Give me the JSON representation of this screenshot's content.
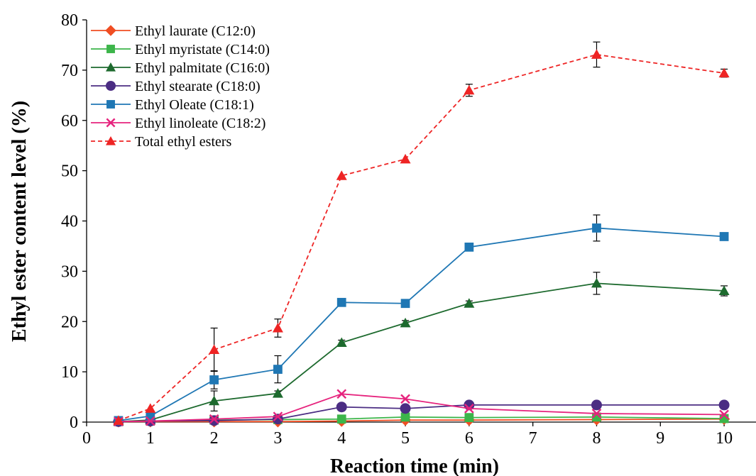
{
  "chart_data": {
    "type": "line",
    "title": "",
    "xlabel": "Reaction time  (min)",
    "ylabel": "Ethyl ester content level  (%)",
    "x": [
      0.5,
      1,
      2,
      3,
      4,
      5,
      6,
      8,
      10
    ],
    "xlim": [
      0,
      10.5
    ],
    "ylim": [
      0,
      80
    ],
    "x_ticks": [
      "0",
      "1",
      "2",
      "3",
      "4",
      "5",
      "6",
      "7",
      "8",
      "9",
      "10"
    ],
    "x_tick_values": [
      0,
      1,
      2,
      3,
      4,
      5,
      6,
      7,
      8,
      9,
      10
    ],
    "y_ticks": [
      "0",
      "10",
      "20",
      "30",
      "40",
      "50",
      "60",
      "70",
      "80"
    ],
    "y_tick_values": [
      0,
      10,
      20,
      30,
      40,
      50,
      60,
      70,
      80
    ],
    "grid": false,
    "legend_position": "top-left",
    "series": [
      {
        "name": "Ethyl laurate (C12:0)",
        "color": "#f04e23",
        "marker": "diamond",
        "dashed": false,
        "values": [
          0.1,
          0.1,
          0.1,
          0.1,
          0.2,
          0.4,
          0.4,
          0.5,
          0.6
        ],
        "errors": [
          0,
          0,
          0,
          0,
          0,
          0,
          0,
          0,
          0
        ]
      },
      {
        "name": "Ethyl myristate (C14:0)",
        "color": "#3cb54a",
        "marker": "square",
        "dashed": false,
        "values": [
          0.1,
          0.2,
          0.4,
          0.5,
          0.6,
          1.0,
          0.9,
          1.0,
          0.7
        ],
        "errors": [
          0,
          0,
          0,
          0,
          0,
          0,
          0,
          0,
          0
        ]
      },
      {
        "name": "Ethyl palmitate (C16:0)",
        "color": "#1d6a2e",
        "marker": "triangle",
        "dashed": false,
        "values": [
          0.1,
          0.4,
          4.2,
          5.7,
          15.8,
          19.7,
          23.6,
          27.6,
          26.1
        ],
        "errors": [
          0,
          0,
          2.0,
          0.5,
          0.5,
          0.5,
          0.5,
          2.2,
          1.0
        ]
      },
      {
        "name": "Ethyl stearate (C18:0)",
        "color": "#4b2d83",
        "marker": "circle",
        "dashed": false,
        "values": [
          0.1,
          0.2,
          0.3,
          0.6,
          3.0,
          2.7,
          3.4,
          3.4,
          3.4
        ],
        "errors": [
          0,
          0,
          0,
          0,
          0,
          0,
          0,
          0,
          0
        ]
      },
      {
        "name": "Ethyl Oleate (C18:1)",
        "color": "#1f77b4",
        "marker": "square",
        "dashed": false,
        "values": [
          0.3,
          1.2,
          8.4,
          10.5,
          23.8,
          23.6,
          34.8,
          38.6,
          36.9
        ],
        "errors": [
          0,
          0,
          1.8,
          2.7,
          0.4,
          0.4,
          0.5,
          2.6,
          0.4
        ]
      },
      {
        "name": "Ethyl linoleate (C18:2)",
        "color": "#e6237d",
        "marker": "x",
        "dashed": false,
        "values": [
          0.1,
          0.2,
          0.6,
          1.1,
          5.6,
          4.6,
          2.7,
          1.7,
          1.5
        ],
        "errors": [
          0,
          0,
          0,
          0,
          0,
          0,
          0,
          0,
          0
        ]
      },
      {
        "name": "Total ethyl esters",
        "color": "#ee2424",
        "marker": "triangle",
        "dashed": true,
        "values": [
          0.3,
          2.7,
          14.4,
          18.7,
          49.0,
          52.3,
          66.0,
          73.1,
          69.4
        ],
        "errors": [
          0,
          0,
          4.3,
          1.8,
          0,
          0,
          1.2,
          2.5,
          0.8
        ]
      }
    ]
  }
}
